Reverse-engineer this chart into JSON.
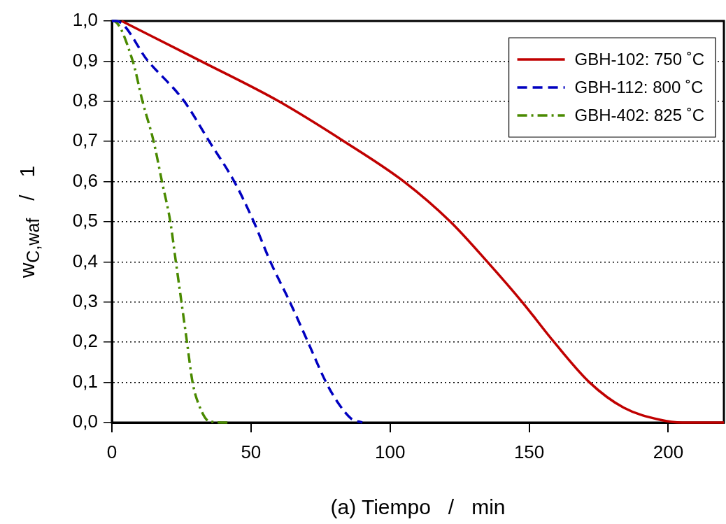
{
  "chart_data": {
    "type": "line",
    "xlabel": "(a) Tiempo   /   min",
    "ylabel": "w$_{C,waf}$   /   1",
    "xlim": [
      0,
      220
    ],
    "xticks": [
      0,
      50,
      100,
      150,
      200
    ],
    "ylim": [
      0,
      1
    ],
    "yticks": [
      {
        "value": 0,
        "label": "0,0"
      },
      {
        "value": 0.1,
        "label": "0,1"
      },
      {
        "value": 0.2,
        "label": "0,2"
      },
      {
        "value": 0.3,
        "label": "0,3"
      },
      {
        "value": 0.4,
        "label": "0,4"
      },
      {
        "value": 0.5,
        "label": "0,5"
      },
      {
        "value": 0.6,
        "label": "0,6"
      },
      {
        "value": 0.7,
        "label": "0,7"
      },
      {
        "value": 0.8,
        "label": "0,8"
      },
      {
        "value": 0.9,
        "label": "0,9"
      },
      {
        "value": 1,
        "label": "1,0"
      }
    ],
    "grid": "y",
    "legend": "top right",
    "marker": "none",
    "series": [
      {
        "name": "GBH-102: 750 ˚C",
        "color": "#c00000",
        "line_style": "solid",
        "x": [
          3.5,
          32,
          60,
          83.5,
          105,
          121.7,
          135,
          147.5,
          159,
          171.7,
          184,
          197,
          205,
          220
        ],
        "values": [
          1,
          0.9,
          0.8,
          0.7,
          0.6,
          0.5,
          0.4,
          0.3,
          0.2,
          0.1,
          0.037,
          0.007,
          0,
          0
        ]
      },
      {
        "name": "GBH-112: 800 ˚C",
        "color": "#0000c0",
        "line_style": "dashed",
        "x": [
          0,
          1.5,
          13,
          26,
          35,
          44,
          51,
          57,
          64,
          70.5,
          77,
          81.5,
          86,
          90
        ],
        "values": [
          1,
          1,
          0.9,
          0.8,
          0.7,
          0.6,
          0.5,
          0.4,
          0.3,
          0.2,
          0.1,
          0.047,
          0.01,
          0
        ]
      },
      {
        "name": "GBH-402: 825 ˚C",
        "color": "#4a8a00",
        "line_style": "dashdot",
        "x": [
          0,
          0.5,
          7.5,
          11,
          15,
          18,
          21,
          23,
          25,
          27,
          29,
          31.5,
          35,
          42
        ],
        "values": [
          1,
          1,
          0.9,
          0.8,
          0.7,
          0.6,
          0.5,
          0.4,
          0.3,
          0.2,
          0.1,
          0.04,
          0.003,
          0
        ]
      }
    ]
  }
}
